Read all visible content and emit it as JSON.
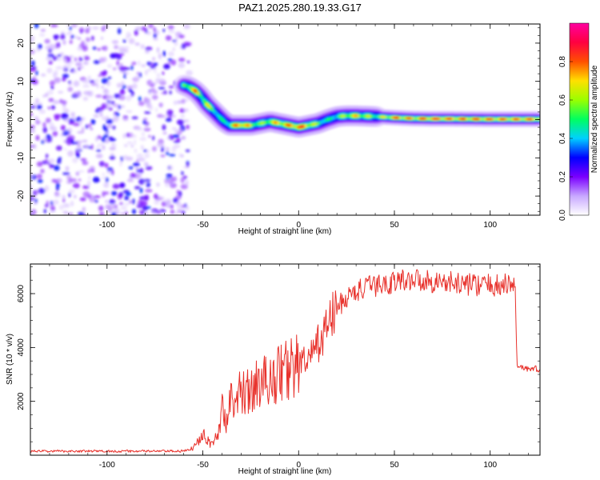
{
  "title": "PAZ1.2025.280.19.33.G17",
  "chart_data": [
    {
      "type": "heatmap",
      "xlabel": "Height of straight line (km)",
      "ylabel": "Frequency (Hz)",
      "xlim": [
        -140,
        126
      ],
      "ylim": [
        -25,
        25
      ],
      "xticks": [
        -100,
        -50,
        0,
        50,
        100
      ],
      "yticks": [
        20,
        10,
        0,
        -10,
        -20
      ],
      "noise_region_x": [
        -140,
        -60
      ],
      "ridge": {
        "x": [
          -60,
          -57,
          -54,
          -51,
          -48,
          -45,
          -42,
          -39,
          -36,
          -33,
          -30,
          -25,
          -20,
          -15,
          -10,
          -5,
          0,
          5,
          10,
          15,
          20,
          25,
          30,
          40,
          50,
          60,
          70,
          80,
          100,
          126
        ],
        "freq": [
          9,
          8.5,
          7.5,
          6,
          4,
          2.5,
          1,
          -0.5,
          -1.5,
          -1.5,
          -1.5,
          -1.5,
          -1,
          -0.5,
          -1,
          -1.5,
          -2,
          -1.5,
          -1,
          0,
          0.8,
          1,
          1,
          0.8,
          0.5,
          0.3,
          0.2,
          0.2,
          0.1,
          0.1
        ],
        "amplitude": [
          0.6,
          0.7,
          0.8,
          0.6,
          0.7,
          0.6,
          0.5,
          0.5,
          0.6,
          0.8,
          0.9,
          0.7,
          0.6,
          0.7,
          0.8,
          0.8,
          0.9,
          0.8,
          0.6,
          0.5,
          0.55,
          0.7,
          0.75,
          0.6,
          0.85,
          0.8,
          0.9,
          0.85,
          0.85,
          0.85
        ]
      },
      "colorbar": {
        "label": "Normalized spectral amplitude",
        "ticks": [
          0.0,
          0.2,
          0.4,
          0.6,
          0.8
        ],
        "tick_labels": [
          "0.0",
          "0.2",
          "0.4",
          "0.6",
          "0.8"
        ],
        "range": [
          0,
          1
        ],
        "colors": [
          "#ffffff",
          "#c8a8ff",
          "#7a00ff",
          "#0000ff",
          "#00d0ff",
          "#00ff60",
          "#9aff00",
          "#ffe000",
          "#ff5000",
          "#ff0040",
          "#ff00a0"
        ]
      }
    },
    {
      "type": "line",
      "xlabel": "Height of straight line (km)",
      "ylabel": "SNR (10 * v/v)",
      "xlim": [
        -140,
        126
      ],
      "ylim": [
        0,
        7100
      ],
      "xticks": [
        -100,
        -50,
        0,
        50,
        100
      ],
      "yticks": [
        2000,
        4000,
        6000
      ],
      "color": "#e8322c",
      "series": [
        {
          "name": "SNR",
          "x": [
            -140,
            -120,
            -100,
            -80,
            -60,
            -55,
            -52,
            -50,
            -46,
            -42,
            -40,
            -38,
            -36,
            -33,
            -30,
            -25,
            -20,
            -15,
            -10,
            -5,
            0,
            5,
            10,
            15,
            20,
            25,
            30,
            35,
            40,
            45,
            50,
            55,
            60,
            65,
            70,
            80,
            90,
            100,
            105,
            110,
            113,
            114,
            115,
            118,
            120,
            126
          ],
          "y": [
            150,
            150,
            150,
            150,
            150,
            250,
            600,
            900,
            400,
            700,
            1800,
            1200,
            2200,
            1600,
            2500,
            2300,
            2800,
            2700,
            3100,
            3200,
            3400,
            3500,
            4100,
            4800,
            5500,
            5800,
            6100,
            6200,
            6300,
            6350,
            6450,
            6500,
            6550,
            6500,
            6450,
            6400,
            6350,
            6300,
            6300,
            6350,
            6300,
            3400,
            3300,
            3250,
            3200,
            3200
          ]
        }
      ]
    }
  ]
}
